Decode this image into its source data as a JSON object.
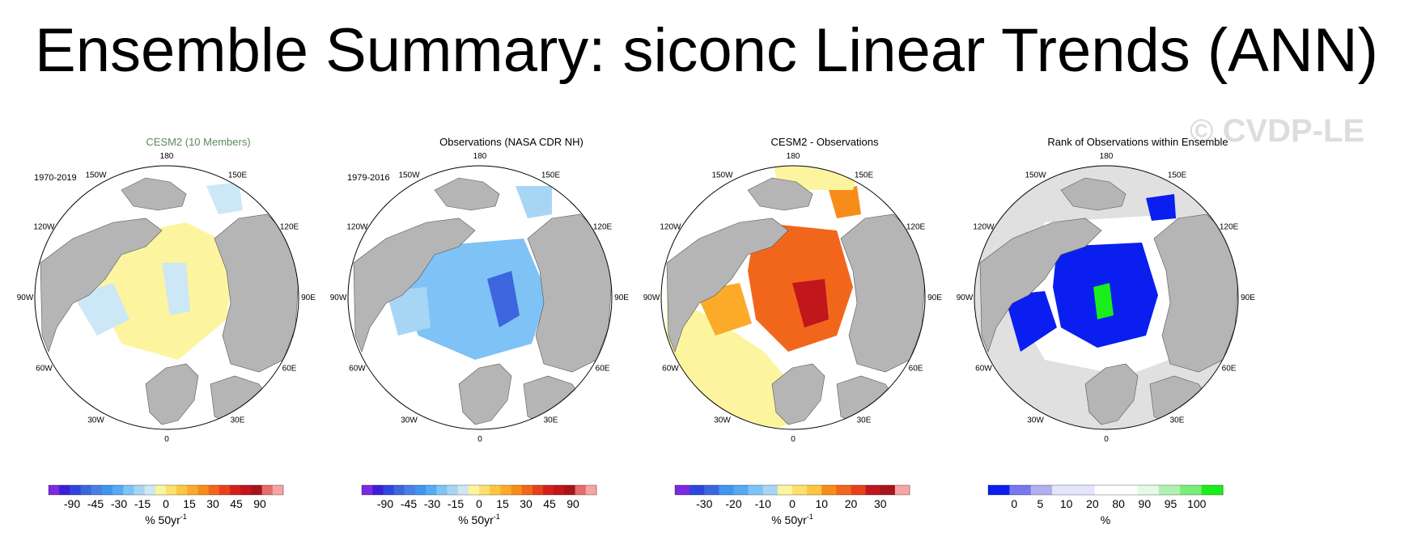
{
  "title": "Ensemble Summary: siconc Linear Trends (ANN)",
  "watermark": "© CVDP-LE",
  "compass": {
    "n": "180",
    "s": "0",
    "nw": "150W",
    "ne": "150E",
    "wnw": "120W",
    "ene": "120E",
    "w": "90W",
    "e": "90E",
    "wsw": "60W",
    "ese": "60E",
    "sw": "30W",
    "se": "30E"
  },
  "panels": [
    {
      "title": "CESM2 (10 Members)",
      "title_color": "#5c8a5c",
      "period": "1970-2019",
      "colorbar": {
        "colors": [
          "#7b2be0",
          "#3b1fd8",
          "#2e46e0",
          "#3d66de",
          "#4a7fe6",
          "#3f96f0",
          "#55aaf2",
          "#7fc2f5",
          "#a7d6f5",
          "#cce7f5",
          "#fdf4a0",
          "#fde068",
          "#fdc640",
          "#fbaa2a",
          "#f88c1a",
          "#f2661c",
          "#e8401c",
          "#d41f1c",
          "#c0161c",
          "#a8141c",
          "#e86b6b",
          "#f5a5a5"
        ],
        "ticks": [
          "-90",
          "-45",
          "-30",
          "-15",
          "0",
          "15",
          "30",
          "45",
          "90"
        ],
        "units": "% 50yr",
        "units_sup": "-1"
      }
    },
    {
      "title": "Observations (NASA CDR NH)",
      "title_color": "#000000",
      "period": "1979-2016",
      "colorbar": {
        "colors": [
          "#7b2be0",
          "#3b1fd8",
          "#2e46e0",
          "#3d66de",
          "#4a7fe6",
          "#3f96f0",
          "#55aaf2",
          "#7fc2f5",
          "#a7d6f5",
          "#cce7f5",
          "#fdf4a0",
          "#fde068",
          "#fdc640",
          "#fbaa2a",
          "#f88c1a",
          "#f2661c",
          "#e8401c",
          "#d41f1c",
          "#c0161c",
          "#a8141c",
          "#e86b6b",
          "#f5a5a5"
        ],
        "ticks": [
          "-90",
          "-45",
          "-30",
          "-15",
          "0",
          "15",
          "30",
          "45",
          "90"
        ],
        "units": "% 50yr",
        "units_sup": "-1"
      }
    },
    {
      "title": "CESM2 - Observations",
      "title_color": "#000000",
      "period": "",
      "colorbar": {
        "colors": [
          "#7b2be0",
          "#2e46e0",
          "#3d66de",
          "#3f96f0",
          "#55aaf2",
          "#7fc2f5",
          "#a7d6f5",
          "#fdf4a0",
          "#fde068",
          "#fdc640",
          "#f88c1a",
          "#f2661c",
          "#e8401c",
          "#c0161c",
          "#a8141c",
          "#f5a5a5"
        ],
        "ticks": [
          "-30",
          "-20",
          "-10",
          "0",
          "10",
          "20",
          "30"
        ],
        "units": "% 50yr",
        "units_sup": "-1"
      }
    },
    {
      "title": "Rank of Observations within Ensemble",
      "title_color": "#000000",
      "period": "",
      "colorbar": {
        "colors": [
          "#0a1ef0",
          "#7777ee",
          "#b0b0f0",
          "#e4e4fa",
          "#e4e4fa",
          "#ffffff",
          "#ffffff",
          "#e4fae4",
          "#b0f0b0",
          "#77ee77",
          "#1aee1a"
        ],
        "ticks": [
          "0",
          "5",
          "10",
          "20",
          "80",
          "90",
          "95",
          "100"
        ],
        "units": "%",
        "units_sup": ""
      }
    }
  ]
}
